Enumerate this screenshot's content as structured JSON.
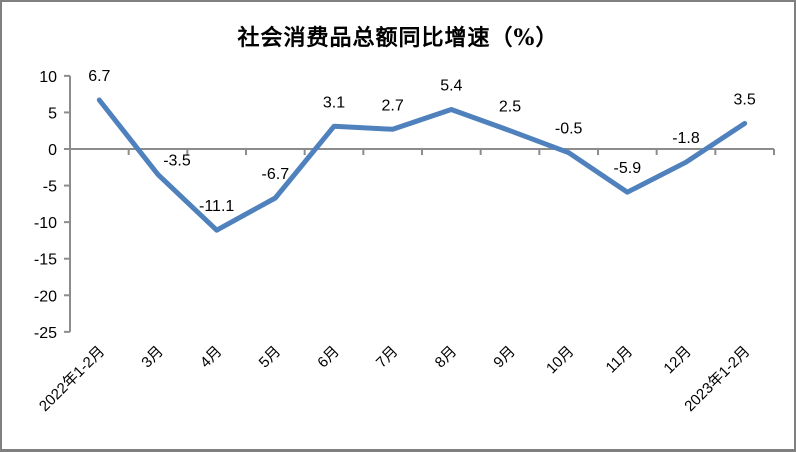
{
  "page": {
    "background_color": "#FFFFFF",
    "border_color": "#808080"
  },
  "chart_data": {
    "type": "line",
    "title": "社会消费品总额同比增速（%）",
    "categories": [
      "2022年1-2月",
      "3月",
      "4月",
      "5月",
      "6月",
      "7月",
      "8月",
      "9月",
      "10月",
      "11月",
      "12月",
      "2023年1-2月"
    ],
    "values": [
      6.7,
      -3.5,
      -11.1,
      -6.7,
      3.1,
      2.7,
      5.4,
      2.5,
      -0.5,
      -5.9,
      -1.8,
      3.5
    ],
    "data_labels": [
      "6.7",
      "-3.5",
      "-11.1",
      "-6.7",
      "3.1",
      "2.7",
      "5.4",
      "2.5",
      "-0.5",
      "-5.9",
      "-1.8",
      "3.5"
    ],
    "y_ticks": [
      10,
      5,
      0,
      -5,
      -10,
      -15,
      -20,
      -25
    ],
    "ylim": [
      -25,
      10
    ],
    "xlabel": "",
    "ylabel": "",
    "grid": "off",
    "legend": "none",
    "line_color": "#4F81BD",
    "axis_color": "#8C8C8C",
    "text_color": "#000000",
    "x_label_rotation_deg": 45,
    "label_offset_hints": [
      {
        "index": 1,
        "dx": 19,
        "dy": 10
      }
    ]
  }
}
